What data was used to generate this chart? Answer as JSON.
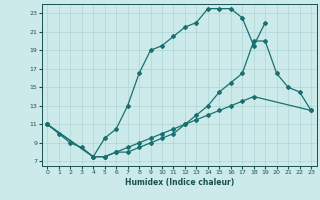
{
  "xlabel": "Humidex (Indice chaleur)",
  "bg_color": "#cceaea",
  "grid_color": "#aed4d4",
  "line_color": "#1a7070",
  "xlim": [
    -0.5,
    23.5
  ],
  "ylim": [
    6.5,
    24.0
  ],
  "xticks": [
    0,
    1,
    2,
    3,
    4,
    5,
    6,
    7,
    8,
    9,
    10,
    11,
    12,
    13,
    14,
    15,
    16,
    17,
    18,
    19,
    20,
    21,
    22,
    23
  ],
  "yticks": [
    7,
    9,
    11,
    13,
    15,
    17,
    19,
    21,
    23
  ],
  "line1_x": [
    0,
    1,
    2,
    3,
    4,
    5,
    6,
    7,
    8,
    9,
    10,
    11,
    12,
    13,
    14,
    15,
    16,
    17,
    18,
    19,
    20,
    21
  ],
  "line1_y": [
    11,
    10,
    9,
    8.5,
    7.5,
    9.5,
    10.5,
    13,
    16.5,
    19,
    19.5,
    20.5,
    21.5,
    22.0,
    23.5,
    23.5,
    23.5,
    22.5,
    19.5,
    22.0,
    null,
    null
  ],
  "line2_x": [
    0,
    4,
    5,
    6,
    7,
    8,
    9,
    10,
    11,
    12,
    13,
    14,
    15,
    16,
    17,
    18,
    19,
    20,
    21,
    22,
    23
  ],
  "line2_y": [
    11,
    7.5,
    7.5,
    8,
    8,
    8.5,
    9,
    9.5,
    10,
    11,
    12,
    13,
    14.5,
    15.5,
    16.5,
    20,
    20,
    16.5,
    15,
    14.5,
    12.5
  ],
  "line3_x": [
    0,
    4,
    5,
    6,
    7,
    8,
    9,
    10,
    11,
    12,
    13,
    14,
    15,
    16,
    17,
    18,
    23
  ],
  "line3_y": [
    11,
    7.5,
    7.5,
    8,
    8.5,
    9,
    9.5,
    10,
    10.5,
    11,
    11.5,
    12,
    12.5,
    13,
    13.5,
    14,
    12.5
  ]
}
